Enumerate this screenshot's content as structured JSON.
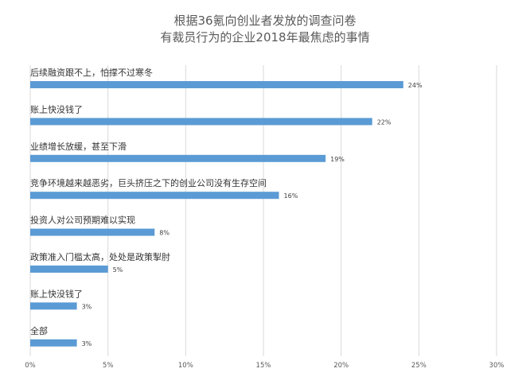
{
  "chart_data": {
    "type": "bar",
    "orientation": "horizontal",
    "title_lines": [
      "根据36氪向创业者发放的调查问卷",
      "有裁员行为的企业2018年最焦虑的事情"
    ],
    "categories": [
      "后续融资跟不上，怕撑不过寒冬",
      "账上快没钱了",
      "业绩增长放缓，甚至下滑",
      "竞争环境越来越恶劣，巨头挤压之下的创业公司没有生存空间",
      "投资人对公司预期难以实现",
      "政策准入门槛太高，处处是政策掣肘",
      "账上快没钱了",
      "全部"
    ],
    "values": [
      24,
      22,
      19,
      16,
      8,
      5,
      3,
      3
    ],
    "value_labels": [
      "24%",
      "22%",
      "19%",
      "16%",
      "8%",
      "5%",
      "3%",
      "3%"
    ],
    "xlim": [
      0,
      30
    ],
    "x_ticks": [
      0,
      5,
      10,
      15,
      20,
      25,
      30
    ],
    "x_tick_labels": [
      "0%",
      "5%",
      "10%",
      "15%",
      "20%",
      "25%",
      "30%"
    ],
    "grid": "vertical",
    "legend": "none",
    "bar_color": "#5B9BD5",
    "grid_color": "#D9D9D9"
  }
}
